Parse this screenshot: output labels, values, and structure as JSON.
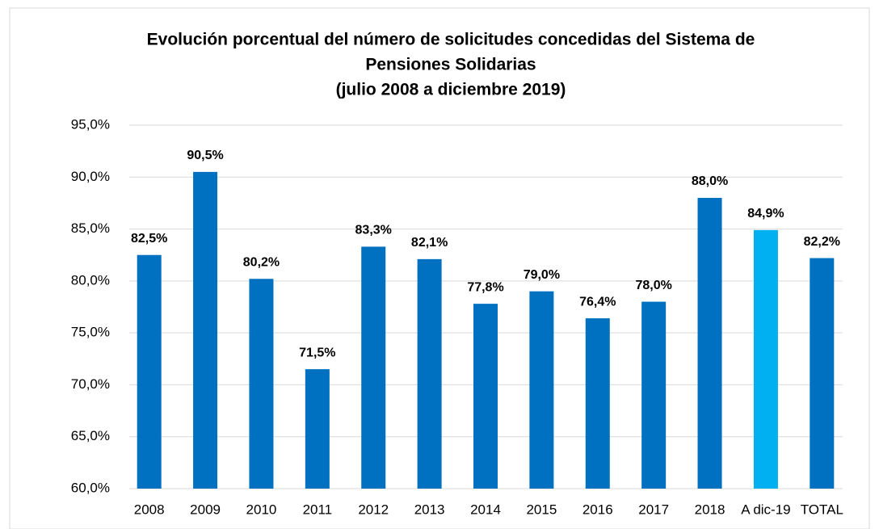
{
  "chart_data": {
    "type": "bar",
    "title": [
      "Evolución porcentual del número de solicitudes concedidas del Sistema de",
      "Pensiones Solidarias",
      "(julio 2008 a diciembre 2019)"
    ],
    "categories": [
      "2008",
      "2009",
      "2010",
      "2011",
      "2012",
      "2013",
      "2014",
      "2015",
      "2016",
      "2017",
      "2018",
      "A dic-19",
      "TOTAL"
    ],
    "values": [
      82.5,
      90.5,
      80.2,
      71.5,
      83.3,
      82.1,
      77.8,
      79.0,
      76.4,
      78.0,
      88.0,
      84.9,
      82.2
    ],
    "value_labels": [
      "82,5%",
      "90,5%",
      "80,2%",
      "71,5%",
      "83,3%",
      "82,1%",
      "77,8%",
      "79,0%",
      "76,4%",
      "78,0%",
      "88,0%",
      "84,9%",
      "82,2%"
    ],
    "colors": [
      "#0070c0",
      "#0070c0",
      "#0070c0",
      "#0070c0",
      "#0070c0",
      "#0070c0",
      "#0070c0",
      "#0070c0",
      "#0070c0",
      "#0070c0",
      "#0070c0",
      "#00b0f0",
      "#0070c0"
    ],
    "ylim": [
      60,
      95
    ],
    "yticks": [
      {
        "value": 60,
        "label": "60,0%"
      },
      {
        "value": 65,
        "label": "65,0%"
      },
      {
        "value": 70,
        "label": "70,0%"
      },
      {
        "value": 75,
        "label": "75,0%"
      },
      {
        "value": 80,
        "label": "80,0%"
      },
      {
        "value": 85,
        "label": "85,0%"
      },
      {
        "value": 90,
        "label": "90,0%"
      },
      {
        "value": 95,
        "label": "95,0%"
      }
    ],
    "grid": true
  }
}
